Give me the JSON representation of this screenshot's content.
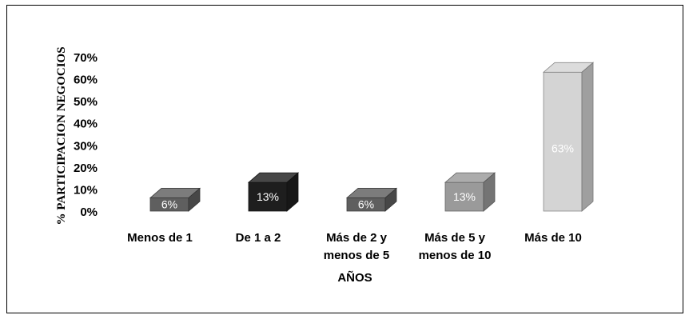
{
  "chart_data": {
    "type": "bar",
    "categories": [
      [
        "Menos de 1"
      ],
      [
        "De 1 a 2"
      ],
      [
        "Más de 2 y",
        "menos de 5"
      ],
      [
        "Más de 5 y",
        "menos de 10"
      ],
      [
        "Más de 10"
      ]
    ],
    "values": [
      6,
      13,
      6,
      13,
      63
    ],
    "data_labels": [
      "6%",
      "13%",
      "6%",
      "13%",
      "63%"
    ],
    "bar_colors": [
      "#5f5f5f",
      "#1e1e1e",
      "#5f5f5f",
      "#9a9a9a",
      "#d4d4d4"
    ],
    "ylabel": "% PARTICIPACION NEGOCIOS",
    "xlabel": "AÑOS",
    "ylim": [
      0,
      70
    ],
    "yticks": [
      0,
      10,
      20,
      30,
      40,
      50,
      60,
      70
    ],
    "ytick_labels": [
      "0%",
      "10%",
      "20%",
      "30%",
      "40%",
      "50%",
      "60%",
      "70%"
    ],
    "grid": false,
    "legend": "none",
    "style": "3d-column"
  }
}
